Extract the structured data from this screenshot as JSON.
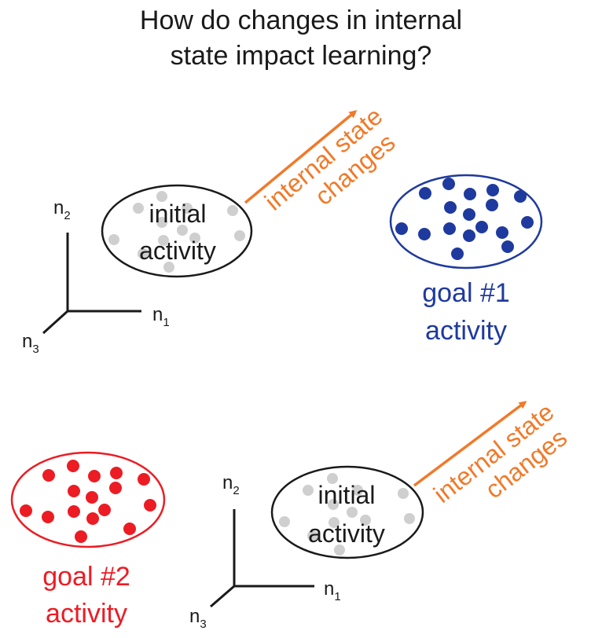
{
  "title": {
    "line1": "How do changes in internal",
    "line2": "state impact learning?"
  },
  "colors": {
    "text": "#1a1a1a",
    "orange": "#f07a2a",
    "blue": "#1f3a9e",
    "red": "#ec1c24",
    "gray_dot": "#cfcfcf"
  },
  "panel_top": {
    "axis": {
      "n1": "n",
      "n1_sub": "1",
      "n2": "n",
      "n2_sub": "2",
      "n3": "n",
      "n3_sub": "3"
    },
    "initial": {
      "line1": "initial",
      "line2": "activity"
    },
    "arrow": {
      "line1": "internal state",
      "line2": "changes"
    },
    "goal": {
      "line1": "goal #1",
      "line2": "activity"
    }
  },
  "panel_bottom": {
    "axis": {
      "n1": "n",
      "n1_sub": "1",
      "n2": "n",
      "n2_sub": "2",
      "n3": "n",
      "n3_sub": "3"
    },
    "initial": {
      "line1": "initial",
      "line2": "activity"
    },
    "arrow": {
      "line1": "internal state",
      "line2": "changes"
    },
    "goal": {
      "line1": "goal #2",
      "line2": "activity"
    }
  }
}
